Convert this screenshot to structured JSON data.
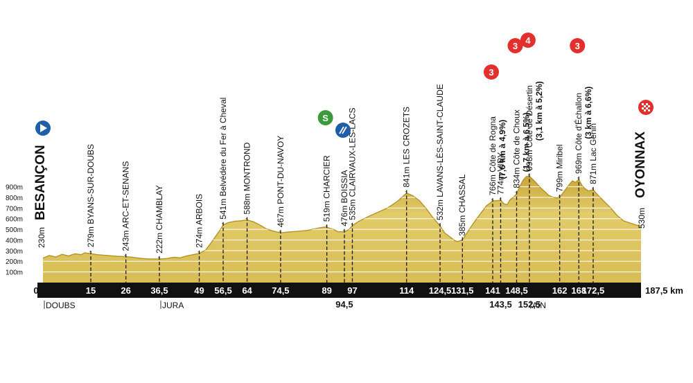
{
  "chart_data": {
    "type": "area",
    "title": "",
    "xlabel": "",
    "ylabel": "",
    "x_unit": "km",
    "xlim": [
      0,
      187.5
    ],
    "ylim": [
      0,
      1000
    ],
    "y_ticks": [
      {
        "value": 100,
        "label": "100m"
      },
      {
        "value": 200,
        "label": "200m"
      },
      {
        "value": 300,
        "label": "300m"
      },
      {
        "value": 400,
        "label": "400m"
      },
      {
        "value": 500,
        "label": "500m"
      },
      {
        "value": 600,
        "label": "600m"
      },
      {
        "value": 700,
        "label": "700m"
      },
      {
        "value": 800,
        "label": "800m"
      },
      {
        "value": 900,
        "label": "900m"
      }
    ],
    "colors": {
      "fill": "#dcc35a",
      "fill_dark": "#b39227",
      "bar": "#111111",
      "climb": "#e3302f",
      "sprint": "#3b9a3e",
      "start": "#1f5fa8"
    },
    "profile": [
      [
        0,
        230
      ],
      [
        2,
        255
      ],
      [
        4,
        240
      ],
      [
        6,
        265
      ],
      [
        8,
        250
      ],
      [
        10,
        270
      ],
      [
        12,
        262
      ],
      [
        13,
        279
      ],
      [
        15,
        272
      ],
      [
        17,
        262
      ],
      [
        20,
        255
      ],
      [
        23,
        248
      ],
      [
        26,
        243
      ],
      [
        28,
        238
      ],
      [
        31,
        226
      ],
      [
        33.5,
        222
      ],
      [
        36.5,
        222
      ],
      [
        39,
        226
      ],
      [
        41,
        238
      ],
      [
        43,
        232
      ],
      [
        45,
        250
      ],
      [
        47,
        262
      ],
      [
        49,
        274
      ],
      [
        51,
        305
      ],
      [
        53,
        385
      ],
      [
        55,
        470
      ],
      [
        56.5,
        541
      ],
      [
        58,
        562
      ],
      [
        60,
        575
      ],
      [
        62,
        580
      ],
      [
        64,
        588
      ],
      [
        66,
        570
      ],
      [
        68,
        540
      ],
      [
        70,
        505
      ],
      [
        72,
        485
      ],
      [
        74.5,
        467
      ],
      [
        77,
        475
      ],
      [
        80,
        482
      ],
      [
        83,
        490
      ],
      [
        86,
        510
      ],
      [
        88,
        520
      ],
      [
        89,
        519
      ],
      [
        91,
        500
      ],
      [
        92.5,
        478
      ],
      [
        94.5,
        476
      ],
      [
        96,
        500
      ],
      [
        97,
        535
      ],
      [
        99,
        575
      ],
      [
        102,
        620
      ],
      [
        105,
        660
      ],
      [
        108,
        700
      ],
      [
        111,
        760
      ],
      [
        114,
        841
      ],
      [
        116,
        815
      ],
      [
        118,
        770
      ],
      [
        120,
        700
      ],
      [
        122,
        620
      ],
      [
        124.5,
        532
      ],
      [
        126,
        465
      ],
      [
        128,
        420
      ],
      [
        129,
        395
      ],
      [
        130,
        385
      ],
      [
        131.5,
        400
      ],
      [
        133,
        470
      ],
      [
        135,
        560
      ],
      [
        137,
        640
      ],
      [
        139,
        720
      ],
      [
        141,
        766
      ],
      [
        142.5,
        770
      ],
      [
        143.5,
        774
      ],
      [
        144.5,
        740
      ],
      [
        145.5,
        730
      ],
      [
        146.5,
        780
      ],
      [
        147.5,
        800
      ],
      [
        148.5,
        834
      ],
      [
        149.5,
        900
      ],
      [
        150.5,
        960
      ],
      [
        151.5,
        995
      ],
      [
        152.5,
        998
      ],
      [
        153.5,
        970
      ],
      [
        154.5,
        940
      ],
      [
        156,
        890
      ],
      [
        157.5,
        850
      ],
      [
        158.5,
        820
      ],
      [
        160,
        800
      ],
      [
        161,
        795
      ],
      [
        162,
        799
      ],
      [
        163,
        840
      ],
      [
        164,
        880
      ],
      [
        165,
        920
      ],
      [
        166,
        955
      ],
      [
        167,
        940
      ],
      [
        168,
        969
      ],
      [
        169,
        910
      ],
      [
        170,
        880
      ],
      [
        171,
        860
      ],
      [
        172.5,
        871
      ],
      [
        174,
        820
      ],
      [
        176,
        760
      ],
      [
        178,
        700
      ],
      [
        180,
        630
      ],
      [
        182,
        580
      ],
      [
        184,
        560
      ],
      [
        186,
        540
      ],
      [
        187.5,
        530
      ]
    ],
    "km_markers": [
      {
        "km": 0,
        "label": "0"
      },
      {
        "km": 15,
        "label": "15"
      },
      {
        "km": 26,
        "label": "26"
      },
      {
        "km": 36.5,
        "label": "36,5"
      },
      {
        "km": 49,
        "label": "49"
      },
      {
        "km": 56.5,
        "label": "56,5"
      },
      {
        "km": 64,
        "label": "64"
      },
      {
        "km": 74.5,
        "label": "74,5"
      },
      {
        "km": 89,
        "label": "89"
      },
      {
        "km": 94.5,
        "label": "94,5"
      },
      {
        "km": 97,
        "label": "97"
      },
      {
        "km": 114,
        "label": "114"
      },
      {
        "km": 124.5,
        "label": "124,5"
      },
      {
        "km": 131.5,
        "label": "131,5"
      },
      {
        "km": 141,
        "label": "141"
      },
      {
        "km": 143.5,
        "label": "143,5"
      },
      {
        "km": 148.5,
        "label": "148,5"
      },
      {
        "km": 152.5,
        "label": "152,5"
      },
      {
        "km": 162,
        "label": "162"
      },
      {
        "km": 168,
        "label": "168"
      },
      {
        "km": 172.5,
        "label": "172,5"
      },
      {
        "km": 187.5,
        "label": "187,5 km"
      }
    ],
    "places": [
      {
        "km": 0,
        "alt": 230,
        "alt_label": "230m",
        "name": "BESANÇON",
        "type": "start"
      },
      {
        "km": 15,
        "alt": 279,
        "alt_label": "279m",
        "name": "BYANS-SUR-DOUBS"
      },
      {
        "km": 26,
        "alt": 243,
        "alt_label": "243m",
        "name": "ARC-ET-SENANS"
      },
      {
        "km": 36.5,
        "alt": 222,
        "alt_label": "222m",
        "name": "CHAMBLAY"
      },
      {
        "km": 49,
        "alt": 274,
        "alt_label": "274m",
        "name": "ARBOIS"
      },
      {
        "km": 56.5,
        "alt": 541,
        "alt_label": "541m",
        "name": "Belvédère du Fer à Cheval"
      },
      {
        "km": 64,
        "alt": 588,
        "alt_label": "588m",
        "name": "MONTROND"
      },
      {
        "km": 74.5,
        "alt": 467,
        "alt_label": "467m",
        "name": "PONT-DU-NAVOY"
      },
      {
        "km": 89,
        "alt": 519,
        "alt_label": "519m",
        "name": "CHARCIER",
        "type": "sprint",
        "badge": "S"
      },
      {
        "km": 94.5,
        "alt": 476,
        "alt_label": "476m",
        "name": "BOISSIA",
        "type": "feed"
      },
      {
        "km": 97,
        "alt": 535,
        "alt_label": "535m",
        "name": "CLAIRVAUX-LES-LACS"
      },
      {
        "km": 114,
        "alt": 841,
        "alt_label": "841m",
        "name": "LES CROZETS"
      },
      {
        "km": 124.5,
        "alt": 532,
        "alt_label": "532m",
        "name": "LAVANS-LÈS-SAINT-CLAUDE"
      },
      {
        "km": 131.5,
        "alt": 385,
        "alt_label": "385m",
        "name": "CHASSAL"
      },
      {
        "km": 141,
        "alt": 766,
        "alt_label": "766m",
        "name": "Côte de Rogna",
        "detail": "(7,6 km à 4,9%)",
        "type": "climb",
        "badge": "3"
      },
      {
        "km": 143.5,
        "alt": 774,
        "alt_label": "774m",
        "name": "VIRY"
      },
      {
        "km": 148.5,
        "alt": 834,
        "alt_label": "834m",
        "name": "Côte de Choux",
        "detail": "(1,7 km à 6,5%)",
        "type": "climb",
        "badge": "3"
      },
      {
        "km": 152.5,
        "alt": 998,
        "alt_label": "998m",
        "name": "Côte de Désertin",
        "detail": "(3,1 km à 5,2%)",
        "type": "climb",
        "badge": "4"
      },
      {
        "km": 162,
        "alt": 799,
        "alt_label": "799m",
        "name": "Miribel"
      },
      {
        "km": 168,
        "alt": 969,
        "alt_label": "969m",
        "name": "Côte d'Échallon",
        "detail": "(3 km à 6,6%)",
        "type": "climb",
        "badge": "3"
      },
      {
        "km": 172.5,
        "alt": 871,
        "alt_label": "871m",
        "name": "Lac Genin"
      },
      {
        "km": 187.5,
        "alt": 530,
        "alt_label": "530m",
        "name": "OYONNAX",
        "type": "finish"
      }
    ],
    "departments": [
      {
        "km": 0,
        "label": "DOUBS"
      },
      {
        "km": 36.5,
        "label": "JURA"
      },
      {
        "km": 152.5,
        "label": "AIN"
      }
    ]
  }
}
